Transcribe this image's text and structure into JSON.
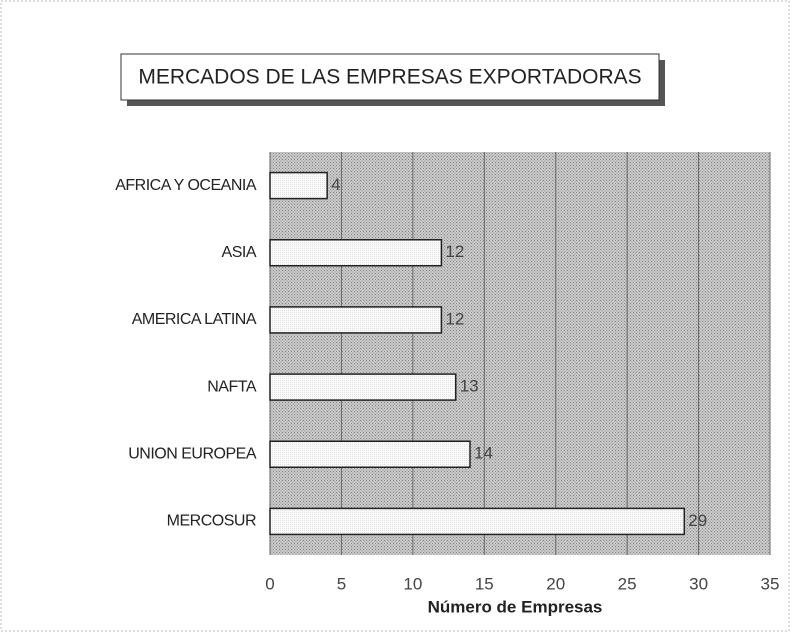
{
  "chart_data": {
    "type": "bar",
    "orientation": "horizontal",
    "title": "MERCADOS DE LAS EMPRESAS EXPORTADORAS",
    "categories": [
      "AFRICA Y OCEANIA",
      "ASIA",
      "AMERICA LATINA",
      "NAFTA",
      "UNION EUROPEA",
      "MERCOSUR"
    ],
    "values": [
      4,
      12,
      12,
      13,
      14,
      29
    ],
    "color": "#f4f4f4",
    "xlabel": "Número de Empresas",
    "xlim": [
      0,
      35
    ],
    "xticks": [
      0,
      5,
      10,
      15,
      20,
      25,
      30,
      35
    ],
    "grid": true
  }
}
